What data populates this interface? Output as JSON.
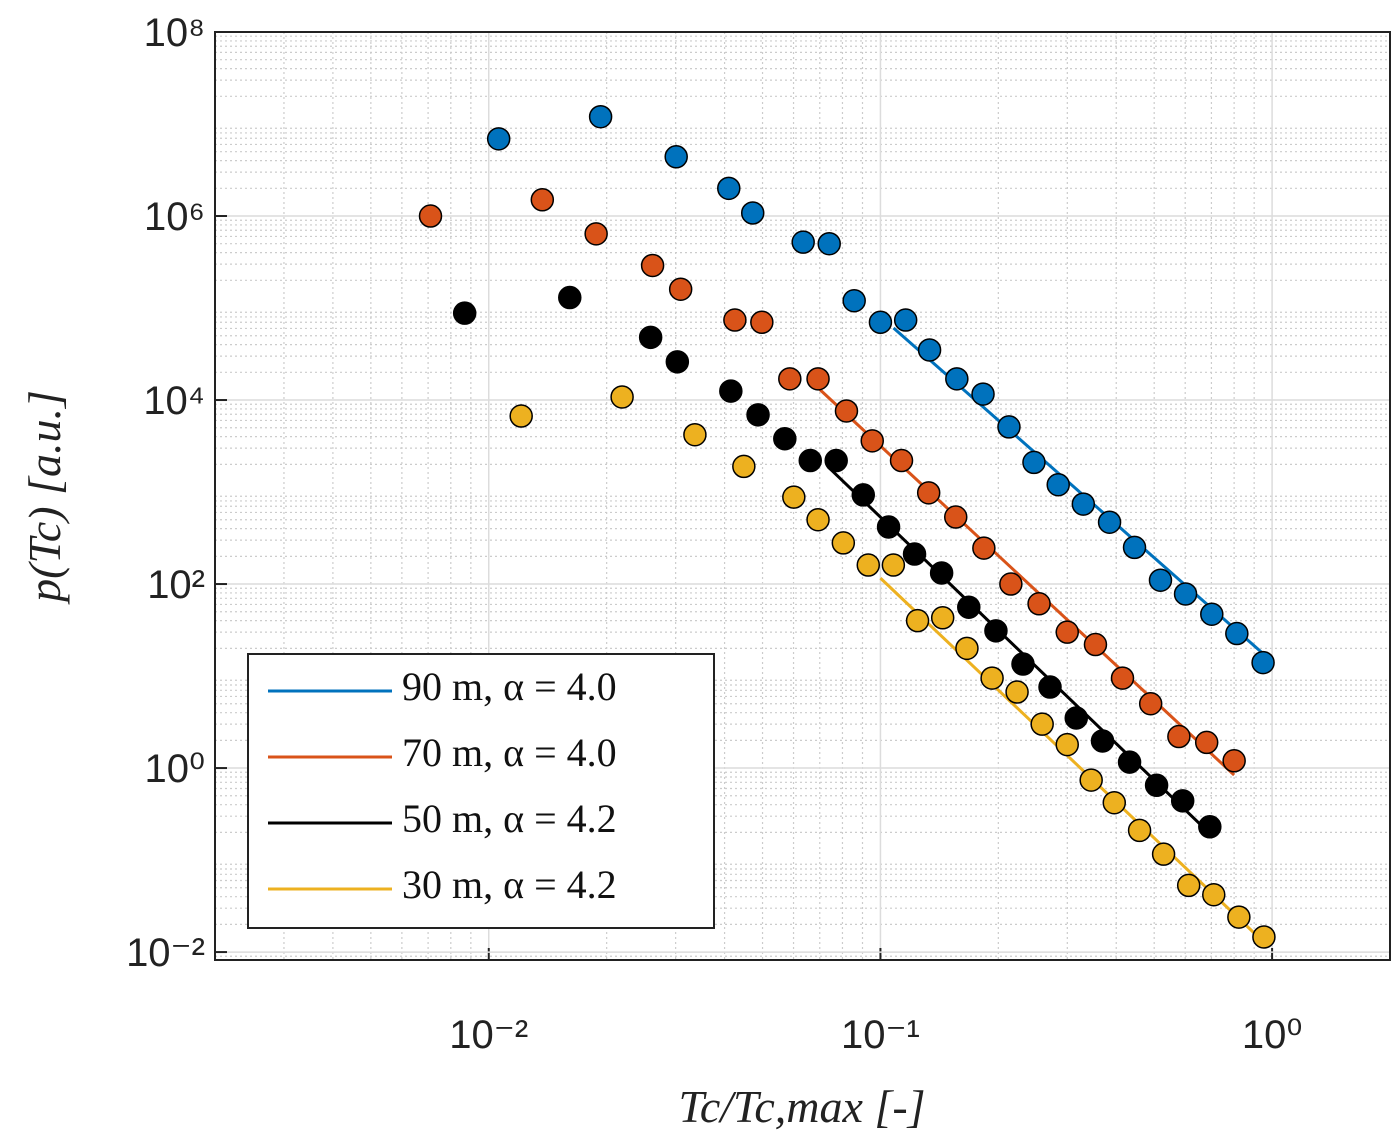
{
  "chart_data": {
    "type": "scatter",
    "xlabel": "Tc/Tc,max [-]",
    "ylabel": "p(Tc) [a.u.]",
    "log_x": true,
    "log_y": true,
    "grid": true,
    "legend": "lower left",
    "xlim": [
      0.002,
      2
    ],
    "ylim": [
      0.0082,
      100000000
    ],
    "xticks": [
      {
        "value": 0.01,
        "label": "10⁻²"
      },
      {
        "value": 0.1,
        "label": "10⁻¹"
      },
      {
        "value": 1,
        "label": "10⁰"
      }
    ],
    "yticks": [
      {
        "value": 0.01,
        "label": "10⁻²"
      },
      {
        "value": 1,
        "label": "10⁰"
      },
      {
        "value": 100,
        "label": "10²"
      },
      {
        "value": 10000,
        "label": "10⁴"
      },
      {
        "value": 1000000,
        "label": "10⁶"
      },
      {
        "value": 100000000,
        "label": "10⁸"
      }
    ],
    "series": [
      {
        "name": "90 m, α = 4.0",
        "color": "#0072BD",
        "x": [
          0.0106,
          0.0193,
          0.0301,
          0.041,
          0.0472,
          0.0635,
          0.074,
          0.0857,
          0.1,
          0.116,
          0.1335,
          0.1567,
          0.1828,
          0.2129,
          0.2466,
          0.2844,
          0.3296,
          0.3846,
          0.4454,
          0.5188,
          0.6012,
          0.7015,
          0.8128,
          0.9484
        ],
        "values": [
          6900000,
          12000000,
          4400000,
          2000000,
          1080000,
          520000,
          500000,
          120000,
          70000,
          74000,
          35000,
          17000,
          11600,
          5100,
          2100,
          1200,
          740,
          470,
          250,
          110,
          78,
          47,
          29,
          14
        ],
        "fit": {
          "x": [
            0.108,
            0.97
          ],
          "y": [
            60700,
            16.1
          ]
        }
      },
      {
        "name": "70 m, α = 4.0",
        "color": "#D95319",
        "x": [
          0.0071,
          0.0137,
          0.0188,
          0.0262,
          0.0309,
          0.0425,
          0.0498,
          0.0587,
          0.0693,
          0.0819,
          0.0953,
          0.1132,
          0.1328,
          0.1557,
          0.1837,
          0.2153,
          0.2541,
          0.2999,
          0.354,
          0.415,
          0.4898,
          0.5781,
          0.6808,
          0.8
        ],
        "values": [
          1000000,
          1500000,
          640000,
          290000,
          160000,
          74000,
          70000,
          17000,
          17000,
          7600,
          3600,
          2200,
          980,
          535,
          246,
          100,
          61,
          30,
          22,
          9.5,
          5.0,
          2.2,
          1.9,
          1.2
        ],
        "fit": {
          "x": [
            0.068,
            0.8
          ],
          "y": [
            14600,
            0.84
          ]
        }
      },
      {
        "name": "50 m, α = 4.2",
        "color": "#000000",
        "x": [
          0.00868,
          0.0161,
          0.0259,
          0.0303,
          0.0415,
          0.0487,
          0.057,
          0.0662,
          0.0771,
          0.0904,
          0.1049,
          0.1222,
          0.1433,
          0.1681,
          0.1972,
          0.2312,
          0.271,
          0.3162,
          0.369,
          0.4326,
          0.5071,
          0.5912,
          0.6934
        ],
        "values": [
          88000,
          130000,
          48000,
          26000,
          12500,
          6900,
          3800,
          2200,
          2200,
          930,
          417,
          212,
          132,
          56,
          31,
          13.5,
          7.6,
          3.5,
          1.97,
          1.16,
          0.65,
          0.44,
          0.23
        ],
        "fit": {
          "x": [
            0.0736,
            0.7
          ],
          "y": [
            1870,
            0.187
          ]
        }
      },
      {
        "name": "30 m, α = 4.2",
        "color": "#EDB120",
        "x": [
          0.0121,
          0.0219,
          0.0336,
          0.0448,
          0.0601,
          0.0693,
          0.0804,
          0.0931,
          0.1079,
          0.1244,
          0.1442,
          0.1663,
          0.1928,
          0.2233,
          0.2588,
          0.2999,
          0.3452,
          0.3954,
          0.4588,
          0.5284,
          0.6124,
          0.7097,
          0.8226,
          0.9531
        ],
        "values": [
          6700,
          10800,
          4200,
          1900,
          880,
          500,
          280,
          161,
          161,
          40,
          43,
          20,
          9.5,
          6.7,
          3.0,
          1.8,
          0.74,
          0.42,
          0.21,
          0.116,
          0.053,
          0.042,
          0.024,
          0.0146
        ],
        "fit": {
          "x": [
            0.1,
            0.97
          ],
          "y": [
            116,
            0.0119
          ]
        }
      }
    ]
  }
}
